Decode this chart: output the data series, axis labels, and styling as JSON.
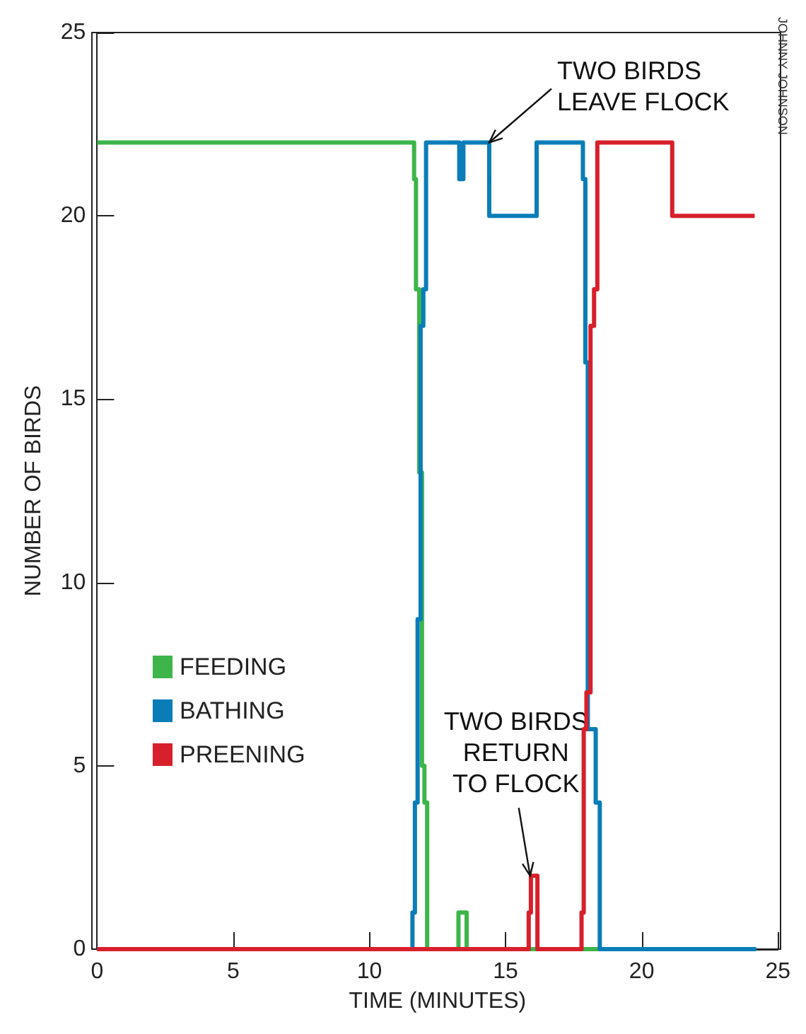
{
  "chart_data": {
    "type": "step",
    "xlabel": "TIME (MINUTES)",
    "ylabel": "NUMBER OF BIRDS",
    "xlim": [
      0,
      25
    ],
    "xticks": [
      0,
      5,
      10,
      15,
      20,
      25
    ],
    "ylim": [
      0,
      25
    ],
    "yticks": [
      0,
      5,
      10,
      15,
      20,
      25
    ],
    "grid": false,
    "legend": "left",
    "marker": "none",
    "line_style": "solid",
    "series": [
      {
        "name": "FEEDING",
        "color": "#3db54a",
        "x": [
          0,
          11.64,
          11.71,
          11.83,
          11.93,
          12.02,
          12.12,
          13.27,
          13.57,
          24.2
        ],
        "values": [
          22,
          21,
          18,
          13,
          5,
          4,
          0,
          1,
          0,
          0
        ]
      },
      {
        "name": "BATHING",
        "color": "#0a7db8",
        "x": [
          0,
          11.58,
          11.67,
          11.77,
          11.88,
          11.98,
          12.08,
          13.3,
          13.45,
          14.4,
          16.14,
          17.84,
          17.93,
          18.02,
          18.31,
          18.46,
          24.2
        ],
        "values": [
          0,
          1,
          4,
          9,
          17,
          18,
          22,
          21,
          22,
          20,
          22,
          21,
          16,
          6,
          4,
          0,
          0
        ]
      },
      {
        "name": "PREENING",
        "color": "#d7202b",
        "x": [
          0,
          15.85,
          15.93,
          16.17,
          17.79,
          17.87,
          17.97,
          18.12,
          18.25,
          18.37,
          21.12,
          24.15
        ],
        "values": [
          0,
          1,
          2,
          0,
          1,
          6,
          7,
          17,
          18,
          22,
          20,
          20
        ]
      }
    ],
    "annotations": [
      {
        "text": "TWO BIRDS\nLEAVE FLOCK",
        "x": 14.4,
        "y": 22
      },
      {
        "text": "TWO BIRDS\nRETURN\nTO FLOCK",
        "x": 15.9,
        "y": 2
      },
      "JOHNNY JOHNSON"
    ]
  }
}
